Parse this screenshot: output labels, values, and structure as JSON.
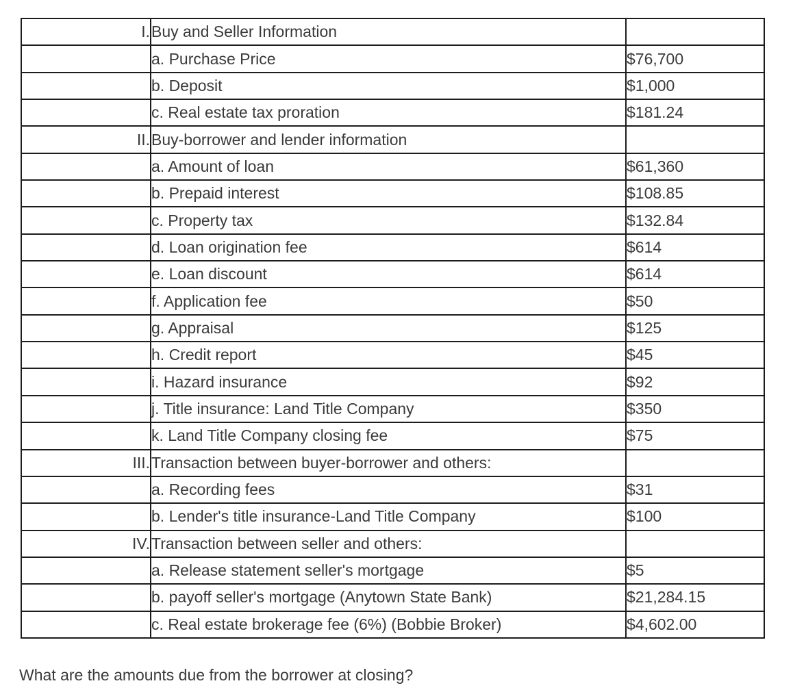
{
  "question": "What are the amounts due from the borrower at closing?",
  "colors": {
    "text": "#3a3a3a",
    "border": "#1c1c1c",
    "background": "#ffffff"
  },
  "table": {
    "columns": [
      "section-numeral",
      "description",
      "amount"
    ],
    "rows": [
      {
        "numeral": "I.",
        "description": "Buy and Seller Information",
        "amount": ""
      },
      {
        "numeral": "",
        "description": "a. Purchase Price",
        "amount": "$76,700"
      },
      {
        "numeral": "",
        "description": "b. Deposit",
        "amount": "$1,000"
      },
      {
        "numeral": "",
        "description": "c. Real estate tax proration",
        "amount": "$181.24"
      },
      {
        "numeral": "II.",
        "description": "Buy-borrower and lender information",
        "amount": ""
      },
      {
        "numeral": "",
        "description": "a. Amount of loan",
        "amount": "$61,360"
      },
      {
        "numeral": "",
        "description": "b. Prepaid interest",
        "amount": "$108.85"
      },
      {
        "numeral": "",
        "description": "c. Property tax",
        "amount": "$132.84"
      },
      {
        "numeral": "",
        "description": "d. Loan origination fee",
        "amount": "$614"
      },
      {
        "numeral": "",
        "description": "e. Loan discount",
        "amount": "$614"
      },
      {
        "numeral": "",
        "description": "f. Application fee",
        "amount": "$50"
      },
      {
        "numeral": "",
        "description": "g. Appraisal",
        "amount": "$125"
      },
      {
        "numeral": "",
        "description": "h. Credit report",
        "amount": "$45"
      },
      {
        "numeral": "",
        "description": "i. Hazard insurance",
        "amount": "$92"
      },
      {
        "numeral": "",
        "description": "j. Title insurance: Land Title Company",
        "amount": "$350"
      },
      {
        "numeral": "",
        "description": "k. Land Title Company closing fee",
        "amount": "$75"
      },
      {
        "numeral": "III.",
        "description": "Transaction between buyer-borrower and others:",
        "amount": ""
      },
      {
        "numeral": "",
        "description": "a. Recording fees",
        "amount": "$31"
      },
      {
        "numeral": "",
        "description": "b. Lender's title insurance-Land Title Company",
        "amount": "$100"
      },
      {
        "numeral": "IV.",
        "description": "Transaction between seller and others:",
        "amount": ""
      },
      {
        "numeral": "",
        "description": "a. Release statement seller's mortgage",
        "amount": "$5"
      },
      {
        "numeral": "",
        "description": "b. payoff seller's mortgage (Anytown State Bank)",
        "amount": "$21,284.15"
      },
      {
        "numeral": "",
        "description": "c. Real estate brokerage fee (6%) (Bobbie Broker)",
        "amount": "$4,602.00"
      }
    ]
  }
}
